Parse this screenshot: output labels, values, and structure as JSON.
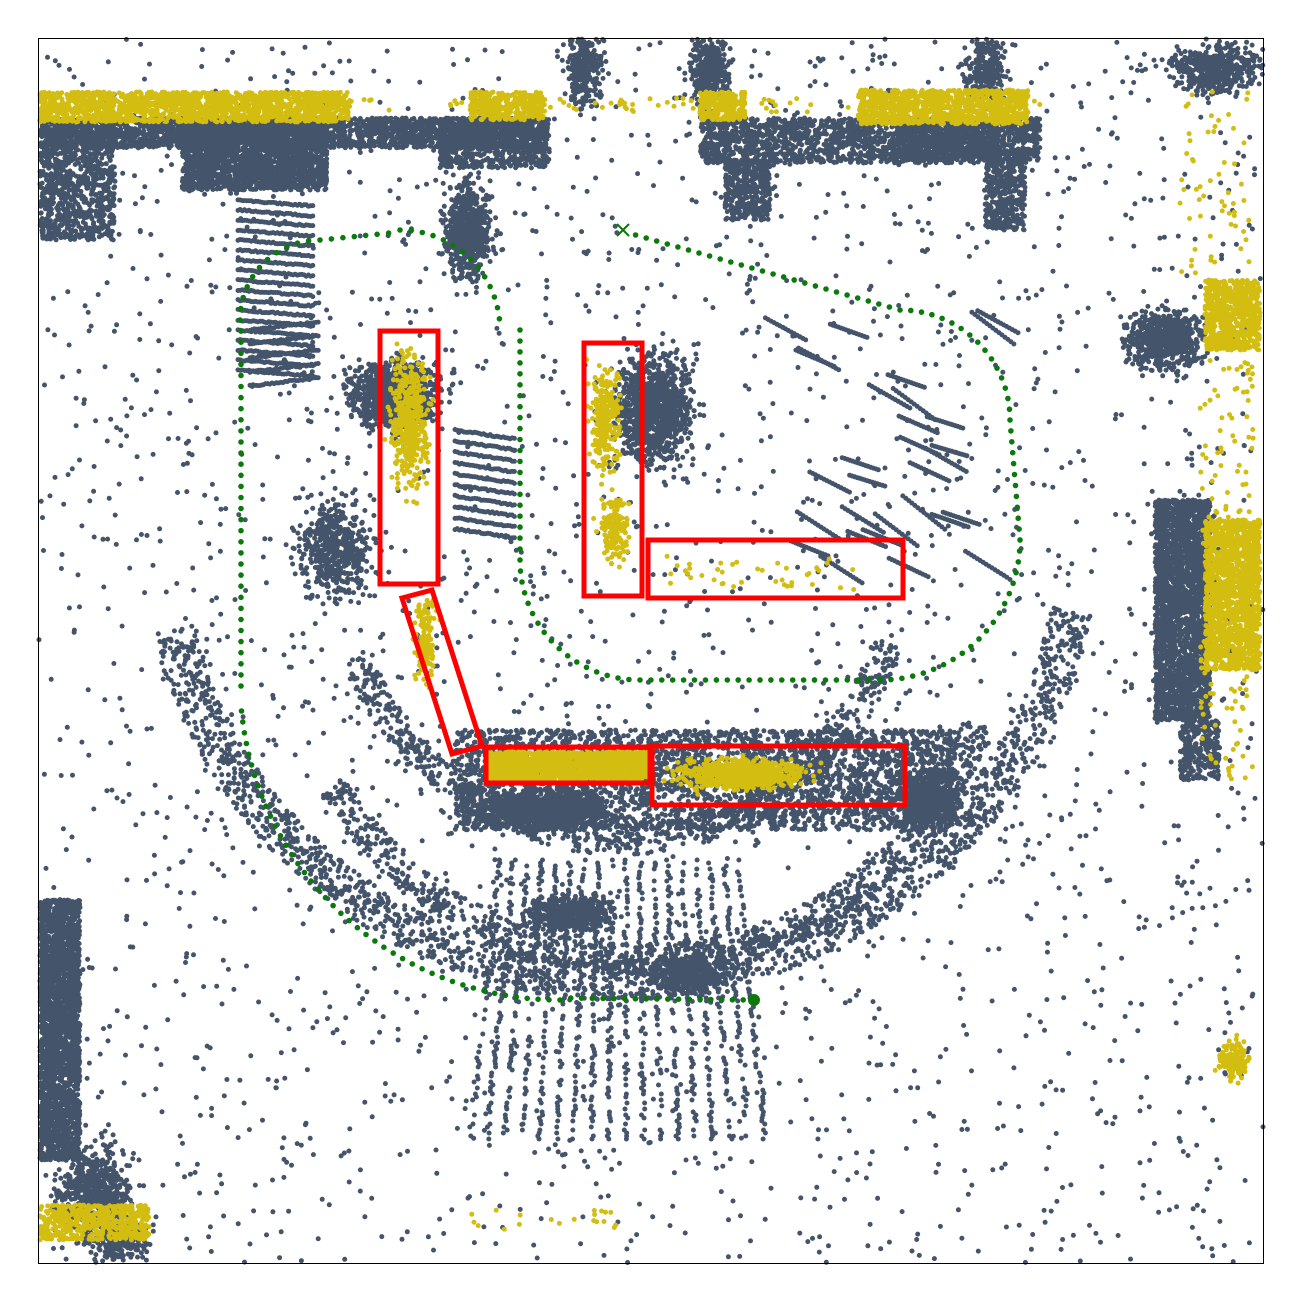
{
  "map": {
    "colors": {
      "background": "#ffffff",
      "frame": "#000000",
      "lidar_points": "#44546a",
      "highlight_points": "#d4bd11",
      "detection_boxes": "#ff0000",
      "trajectory": "#0a7a0a"
    },
    "legend": null,
    "markers": {
      "start": "filled-circle",
      "goal": "x-cross"
    }
  }
}
